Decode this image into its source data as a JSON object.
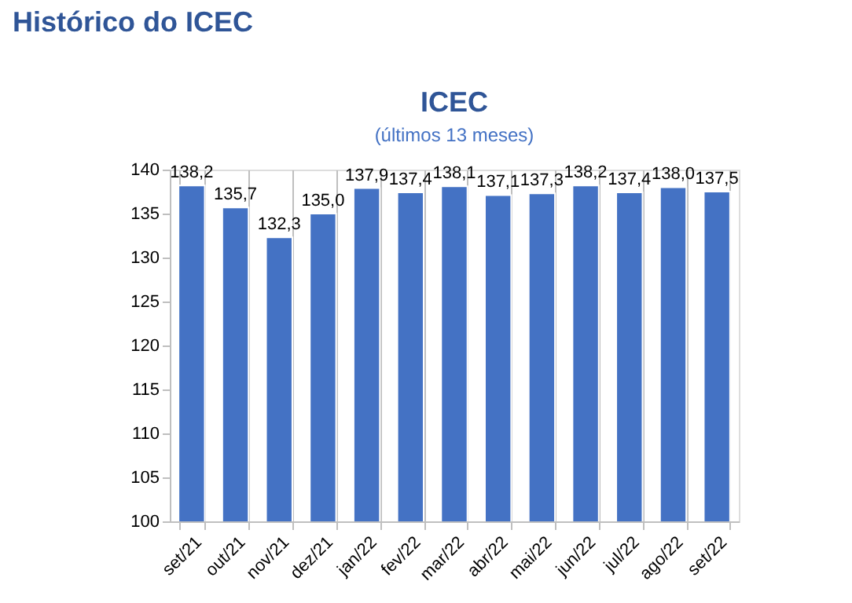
{
  "chart_data": {
    "type": "bar",
    "title": "ICEC",
    "subtitle": "(últimos 13 meses)",
    "annotations": [
      "Histórico do ICEC"
    ],
    "categories": [
      "set/21",
      "out/21",
      "nov/21",
      "dez/21",
      "jan/22",
      "fev/22",
      "mar/22",
      "abr/22",
      "mai/22",
      "jun/22",
      "jul/22",
      "ago/22",
      "set/22"
    ],
    "values": [
      138.2,
      135.7,
      132.3,
      135.0,
      137.9,
      137.4,
      138.1,
      137.1,
      137.3,
      138.2,
      137.4,
      138.0,
      137.5
    ],
    "value_labels": [
      "138,2",
      "135,7",
      "132,3",
      "135,0",
      "137,9",
      "137,4",
      "138,1",
      "137,1",
      "137,3",
      "138,2",
      "137,4",
      "138,0",
      "137,5"
    ],
    "color": "#4472c4",
    "ylim": [
      100,
      140
    ],
    "yticks": [
      100,
      105,
      110,
      115,
      120,
      125,
      130,
      135,
      140
    ],
    "grid": "x"
  }
}
